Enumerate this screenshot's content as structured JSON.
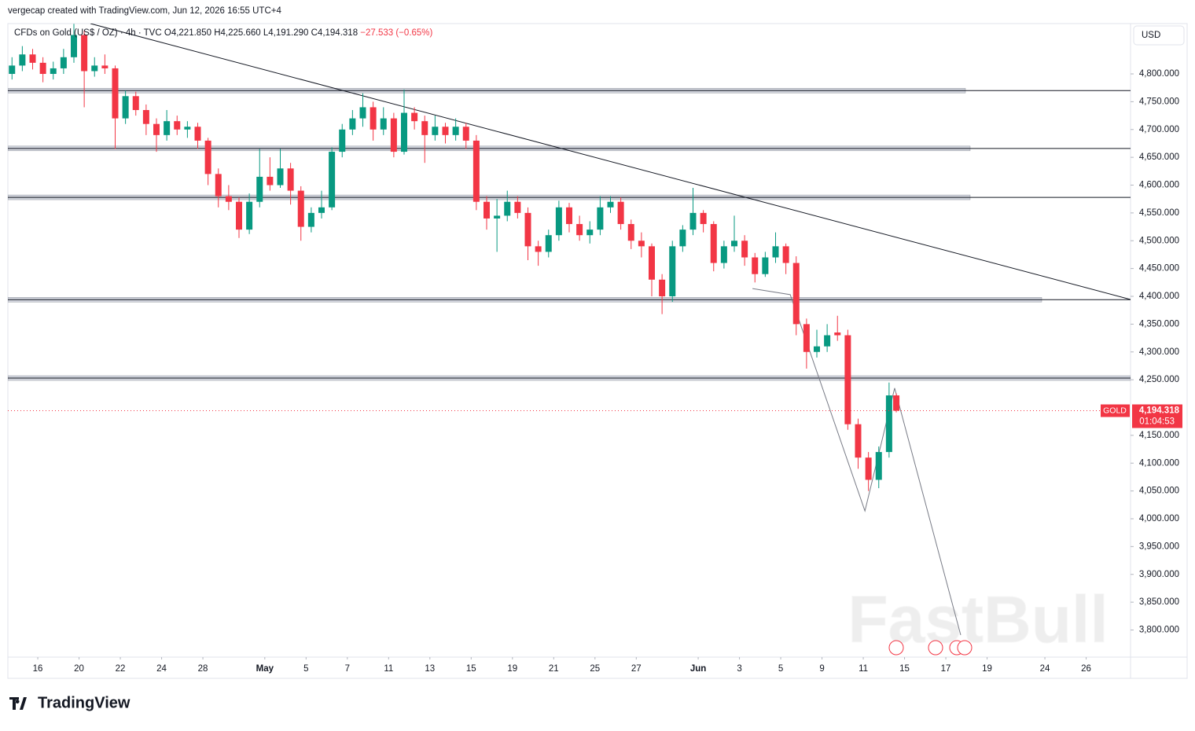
{
  "chart_data": {
    "type": "candlestick",
    "credit": "vergecap created with TradingView.com, Jun 12, 2026 16:55 UTC+4",
    "symbol": "CFDs on Gold (US$ / OZ) · 4h · TVC",
    "ohlc_text": [
      "O4,221.850",
      "H4,225.660",
      "L4,191.290",
      "C4,194.318",
      "−27.533 (−0.65%)"
    ],
    "currency": "USD",
    "ticker": "GOLD",
    "last_price": 4194.318,
    "last_price_label": "4,194.318",
    "countdown": "01:04:53",
    "logo": "TradingView",
    "watermark": "FastBull",
    "up_color": "#089981",
    "down_color": "#f23645",
    "xlim": [
      -1.45,
      52.95
    ],
    "ylim": [
      3751.2,
      4890.5
    ],
    "xticks": [
      {
        "value": 0,
        "label": "16"
      },
      {
        "value": 2,
        "label": "20"
      },
      {
        "value": 4,
        "label": "22"
      },
      {
        "value": 6,
        "label": "24"
      },
      {
        "value": 8,
        "label": "28"
      },
      {
        "value": 11,
        "label": "May"
      },
      {
        "value": 13,
        "label": "5"
      },
      {
        "value": 15,
        "label": "7"
      },
      {
        "value": 17,
        "label": "11"
      },
      {
        "value": 19,
        "label": "13"
      },
      {
        "value": 21,
        "label": "15"
      },
      {
        "value": 23,
        "label": "19"
      },
      {
        "value": 25,
        "label": "21"
      },
      {
        "value": 27,
        "label": "25"
      },
      {
        "value": 29,
        "label": "27"
      },
      {
        "value": 32,
        "label": "Jun"
      },
      {
        "value": 34,
        "label": "3"
      },
      {
        "value": 36,
        "label": "5"
      },
      {
        "value": 38,
        "label": "9"
      },
      {
        "value": 40,
        "label": "11"
      },
      {
        "value": 42,
        "label": "15"
      },
      {
        "value": 44,
        "label": "17"
      },
      {
        "value": 46,
        "label": "19"
      },
      {
        "value": 48.8,
        "label": "24"
      },
      {
        "value": 50.8,
        "label": "26"
      }
    ],
    "yticks": [
      {
        "value": 3800,
        "label": "3,800.000"
      },
      {
        "value": 3850,
        "label": "3,850.000"
      },
      {
        "value": 3900,
        "label": "3,900.000"
      },
      {
        "value": 3950,
        "label": "3,950.000"
      },
      {
        "value": 4000,
        "label": "4,000.000"
      },
      {
        "value": 4050,
        "label": "4,050.000"
      },
      {
        "value": 4100,
        "label": "4,100.000"
      },
      {
        "value": 4150,
        "label": "4,150.000"
      },
      {
        "value": 4250,
        "label": "4,250.000"
      },
      {
        "value": 4300,
        "label": "4,300.000"
      },
      {
        "value": 4350,
        "label": "4,350.000"
      },
      {
        "value": 4400,
        "label": "4,400.000"
      },
      {
        "value": 4450,
        "label": "4,450.000"
      },
      {
        "value": 4500,
        "label": "4,500.000"
      },
      {
        "value": 4550,
        "label": "4,550.000"
      },
      {
        "value": 4600,
        "label": "4,600.000"
      },
      {
        "value": 4650,
        "label": "4,650.000"
      },
      {
        "value": 4700,
        "label": "4,700.000"
      },
      {
        "value": 4750,
        "label": "4,750.000"
      },
      {
        "value": 4800,
        "label": "4,800.000"
      }
    ],
    "levels": [
      4770,
      4666,
      4578,
      4394,
      4253
    ],
    "trendline": {
      "x": [
        2.55,
        52.95
      ],
      "y": [
        4890.5,
        4394.4
      ]
    },
    "projection": {
      "x": [
        34.63,
        36.46,
        40.08,
        41.52,
        44.72
      ],
      "y": [
        4414,
        4403,
        4014,
        4235,
        3791
      ]
    },
    "x": [
      -1.25,
      -0.75,
      -0.25,
      0.25,
      0.75,
      1.25,
      1.75,
      2.25,
      2.75,
      3.25,
      3.75,
      4.25,
      4.75,
      5.25,
      5.75,
      6.25,
      6.75,
      7.25,
      7.75,
      8.25,
      8.75,
      9.25,
      9.75,
      10.25,
      10.75,
      11.25,
      11.75,
      12.25,
      12.75,
      13.25,
      13.75,
      14.25,
      14.75,
      15.25,
      15.75,
      16.25,
      16.75,
      17.25,
      17.75,
      18.25,
      18.75,
      19.25,
      19.75,
      20.25,
      20.75,
      21.25,
      21.75,
      22.25,
      22.75,
      23.25,
      23.75,
      24.25,
      24.75,
      25.25,
      25.75,
      26.25,
      26.75,
      27.25,
      27.75,
      28.25,
      28.75,
      29.25,
      29.75,
      30.25,
      30.75,
      31.25,
      31.75,
      32.25,
      32.75,
      33.25,
      33.75,
      34.25,
      34.75,
      35.25,
      35.75,
      36.25,
      36.75,
      37.25,
      37.75,
      38.25,
      38.75,
      39.25,
      39.75,
      40.25,
      40.75,
      41.25,
      41.6
    ],
    "open": [
      4800,
      4815,
      4835,
      4820,
      4800,
      4810,
      4830,
      4870,
      4805,
      4815,
      4810,
      4720,
      4760,
      4735,
      4710,
      4690,
      4715,
      4700,
      4705,
      4680,
      4620,
      4580,
      4570,
      4520,
      4570,
      4615,
      4600,
      4630,
      4590,
      4525,
      4550,
      4560,
      4660,
      4700,
      4720,
      4740,
      4700,
      4720,
      4660,
      4730,
      4715,
      4690,
      4705,
      4690,
      4705,
      4680,
      4570,
      4540,
      4545,
      4570,
      4550,
      4490,
      4480,
      4510,
      4560,
      4530,
      4510,
      4520,
      4560,
      4570,
      4530,
      4500,
      4490,
      4430,
      4400,
      4490,
      4520,
      4550,
      4530,
      4460,
      4490,
      4500,
      4470,
      4440,
      4470,
      4490,
      4460,
      4350,
      4300,
      4310,
      4335,
      4330,
      4170,
      4110,
      4070,
      4120,
      4221.85
    ],
    "high": [
      4830,
      4850,
      4845,
      4830,
      4822,
      4845,
      4890,
      4878,
      4830,
      4835,
      4815,
      4770,
      4768,
      4745,
      4720,
      4735,
      4725,
      4715,
      4712,
      4685,
      4630,
      4600,
      4578,
      4585,
      4665,
      4650,
      4665,
      4640,
      4598,
      4560,
      4590,
      4668,
      4710,
      4735,
      4765,
      4750,
      4740,
      4730,
      4772,
      4740,
      4725,
      4725,
      4712,
      4720,
      4712,
      4690,
      4580,
      4575,
      4590,
      4580,
      4560,
      4500,
      4520,
      4572,
      4568,
      4545,
      4535,
      4580,
      4580,
      4578,
      4538,
      4515,
      4495,
      4440,
      4500,
      4528,
      4595,
      4555,
      4535,
      4500,
      4545,
      4510,
      4478,
      4480,
      4515,
      4495,
      4472,
      4360,
      4340,
      4350,
      4365,
      4340,
      4180,
      4120,
      4130,
      4245,
      4225.66
    ],
    "low": [
      4790,
      4805,
      4808,
      4785,
      4790,
      4800,
      4820,
      4740,
      4795,
      4800,
      4665,
      4710,
      4725,
      4690,
      4660,
      4680,
      4690,
      4685,
      4665,
      4600,
      4560,
      4555,
      4505,
      4512,
      4560,
      4590,
      4595,
      4565,
      4500,
      4515,
      4540,
      4555,
      4650,
      4690,
      4705,
      4680,
      4690,
      4650,
      4655,
      4700,
      4640,
      4680,
      4675,
      4680,
      4665,
      4555,
      4520,
      4480,
      4535,
      4540,
      4465,
      4455,
      4470,
      4500,
      4515,
      4500,
      4495,
      4510,
      4550,
      4520,
      4485,
      4470,
      4400,
      4368,
      4390,
      4480,
      4510,
      4515,
      4445,
      4450,
      4480,
      4455,
      4425,
      4435,
      4460,
      4440,
      4330,
      4270,
      4290,
      4300,
      4320,
      4160,
      4090,
      4050,
      4055,
      4110,
      4191.29
    ],
    "close": [
      4815,
      4835,
      4820,
      4800,
      4810,
      4830,
      4870,
      4805,
      4815,
      4810,
      4720,
      4760,
      4735,
      4710,
      4690,
      4715,
      4700,
      4705,
      4680,
      4620,
      4580,
      4570,
      4520,
      4570,
      4615,
      4600,
      4630,
      4590,
      4525,
      4550,
      4560,
      4660,
      4700,
      4720,
      4740,
      4700,
      4720,
      4660,
      4730,
      4715,
      4690,
      4705,
      4690,
      4705,
      4680,
      4570,
      4540,
      4545,
      4570,
      4550,
      4490,
      4480,
      4510,
      4560,
      4530,
      4510,
      4520,
      4560,
      4570,
      4530,
      4500,
      4490,
      4430,
      4400,
      4490,
      4520,
      4550,
      4530,
      4460,
      4490,
      4500,
      4470,
      4440,
      4470,
      4490,
      4460,
      4350,
      4300,
      4310,
      4330,
      4330,
      4170,
      4110,
      4070,
      4120,
      4221.85,
      4194.318
    ]
  }
}
